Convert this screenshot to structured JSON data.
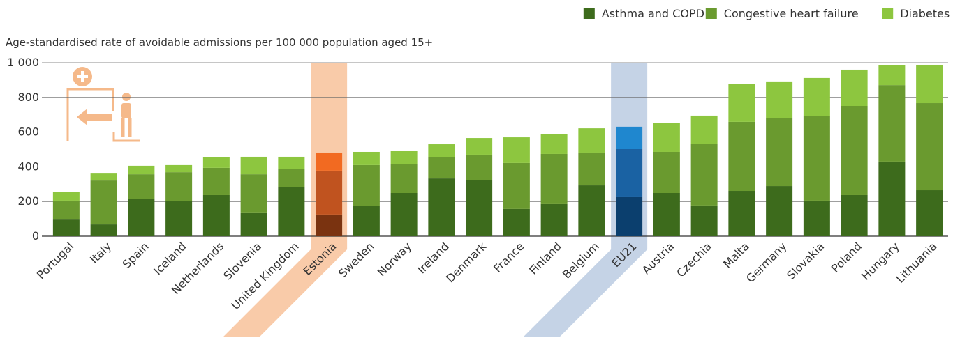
{
  "chart_data": {
    "type": "stacked_bar",
    "y_axis_label": "Age-standardised rate of avoidable admissions per 100 000 population aged 15+",
    "categories": [
      "Portugal",
      "Italy",
      "Spain",
      "Iceland",
      "Netherlands",
      "Slovenia",
      "United Kingdom",
      "Estonia",
      "Sweden",
      "Norway",
      "Ireland",
      "Denmark",
      "France",
      "Finland",
      "Belgium",
      "EU21",
      "Austria",
      "Czechia",
      "Malta",
      "Germany",
      "Slovakia",
      "Poland",
      "Hungary",
      "Lithuania"
    ],
    "series": [
      {
        "name": "Asthma and COPD",
        "color": "#3d6b1c",
        "values": [
          96,
          68,
          213,
          201,
          237,
          133,
          285,
          125,
          173,
          249,
          333,
          325,
          157,
          185,
          293,
          225,
          249,
          177,
          261,
          289,
          205,
          237,
          430,
          265
        ]
      },
      {
        "name": "Congestive heart failure",
        "color": "#6a9a2f",
        "values": [
          109,
          253,
          144,
          168,
          157,
          224,
          101,
          253,
          237,
          165,
          121,
          145,
          265,
          289,
          189,
          277,
          237,
          357,
          398,
          390,
          486,
          514,
          441,
          502
        ]
      },
      {
        "name": "Diabetes",
        "color": "#8dc63f",
        "values": [
          52,
          40,
          49,
          41,
          60,
          101,
          72,
          104,
          76,
          76,
          76,
          96,
          148,
          116,
          140,
          129,
          165,
          161,
          217,
          213,
          221,
          209,
          113,
          221
        ]
      }
    ],
    "highlights": [
      {
        "category_index": 7,
        "colors": [
          "#7a3310",
          "#c0531f",
          "#f26a21"
        ],
        "band_color": "#f9cba9"
      },
      {
        "category_index": 15,
        "colors": [
          "#0b3f6e",
          "#1a62a3",
          "#1f87cf"
        ],
        "band_color": "#c5d3e6"
      }
    ],
    "ylim": [
      0,
      1000
    ],
    "yticks": [
      0,
      200,
      400,
      600,
      {
        "value": 800,
        "label": "800"
      },
      {
        "value": 1000,
        "label": "1 000"
      }
    ],
    "grid": true,
    "legend_position": "top-right"
  }
}
